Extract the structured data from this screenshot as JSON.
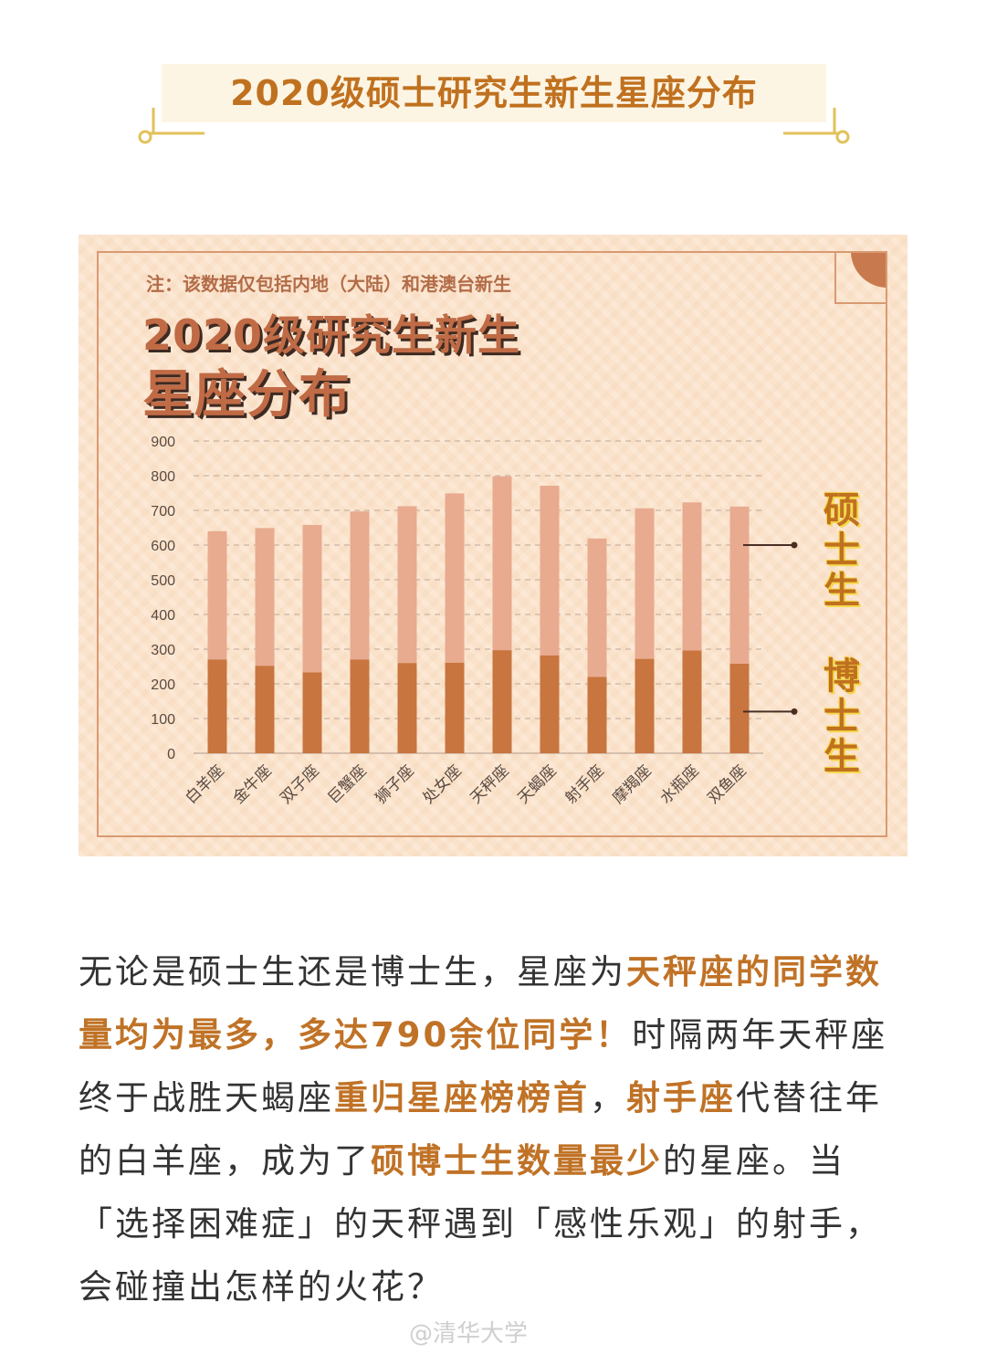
{
  "header": {
    "title": "2020级硕士研究生新生星座分布"
  },
  "card": {
    "note": "注：该数据仅包括内地（大陆）和港澳台新生",
    "title_line1": "2020级研究生新生",
    "title_line2": "星座分布",
    "label_master": "硕士生",
    "label_doctor": "博士生"
  },
  "colors": {
    "master": "#e8ab90",
    "doctor": "#c8753f",
    "accent": "#c07226"
  },
  "chart_data": {
    "type": "bar",
    "stacked": true,
    "categories": [
      "白羊座",
      "金牛座",
      "双子座",
      "巨蟹座",
      "狮子座",
      "处女座",
      "天秤座",
      "天蝎座",
      "射手座",
      "摩羯座",
      "水瓶座",
      "双鱼座"
    ],
    "series": [
      {
        "name": "博士生",
        "values": [
          270,
          252,
          233,
          270,
          260,
          261,
          297,
          282,
          220,
          272,
          296,
          258
        ]
      },
      {
        "name": "硕士生",
        "values": [
          370,
          397,
          425,
          427,
          452,
          488,
          501,
          489,
          399,
          434,
          427,
          453
        ]
      }
    ],
    "ylim": [
      0,
      900
    ],
    "yticks": [
      0,
      100,
      200,
      300,
      400,
      500,
      600,
      700,
      800,
      900
    ],
    "grid": true
  },
  "body": [
    {
      "t": "无论是硕士生还是博士生，星座为",
      "hl": false
    },
    {
      "t": "天秤座的同学数量均为最多，多达790余位同学！",
      "hl": true
    },
    {
      "t": "时隔两年天秤座终于战胜天蝎座",
      "hl": false
    },
    {
      "t": "重归星座榜榜首",
      "hl": true
    },
    {
      "t": "，",
      "hl": false
    },
    {
      "t": "射手座",
      "hl": true
    },
    {
      "t": "代替往年的白羊座，成为了",
      "hl": false
    },
    {
      "t": "硕博士生数量最少",
      "hl": true
    },
    {
      "t": "的星座。当「选择困难症」的天秤遇到「感性乐观」的射手，会碰撞出怎样的火花？",
      "hl": false
    }
  ],
  "watermark": "@清华大学"
}
